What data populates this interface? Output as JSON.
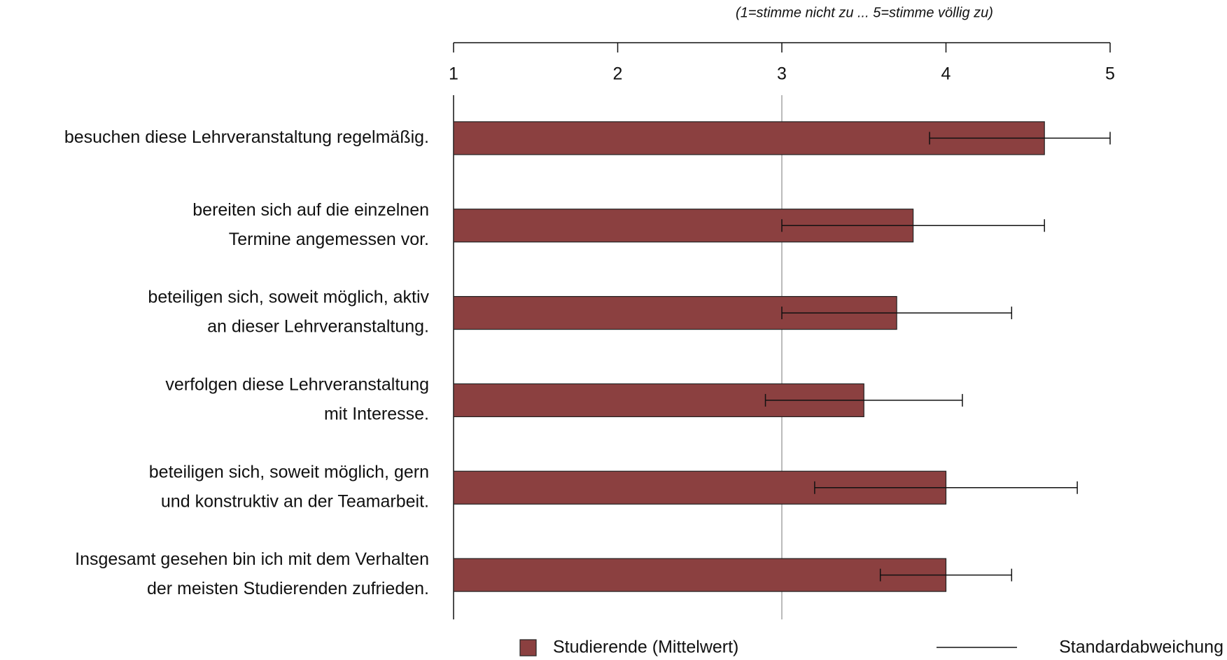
{
  "chart_data": {
    "type": "hbar_error",
    "subtitle": "(1=stimme nicht zu ... 5=stimme völlig zu)",
    "categories": [
      [
        "besuchen diese Lehrveranstaltung regelmäßig."
      ],
      [
        "bereiten sich auf die einzelnen",
        "Termine angemessen vor."
      ],
      [
        "beteiligen sich, soweit möglich, aktiv",
        "an dieser Lehrveranstaltung."
      ],
      [
        "verfolgen diese Lehrveranstaltung",
        "mit Interesse."
      ],
      [
        "beteiligen sich, soweit möglich, gern",
        "und konstruktiv an der Teamarbeit."
      ],
      [
        "Insgesamt gesehen bin ich mit dem Verhalten",
        "der meisten Studierenden zufrieden."
      ]
    ],
    "series": [
      {
        "name": "Studierende (Mittelwert)",
        "color": "#8b4040",
        "values": [
          4.6,
          3.8,
          3.7,
          3.5,
          4.0,
          4.0
        ],
        "errors": [
          0.7,
          0.8,
          0.7,
          0.6,
          0.8,
          0.4
        ]
      }
    ],
    "error_name": "Standardabweichung",
    "xlim": [
      1,
      5
    ],
    "xticks": [
      1,
      2,
      3,
      4,
      5
    ],
    "reference_line": 3
  }
}
